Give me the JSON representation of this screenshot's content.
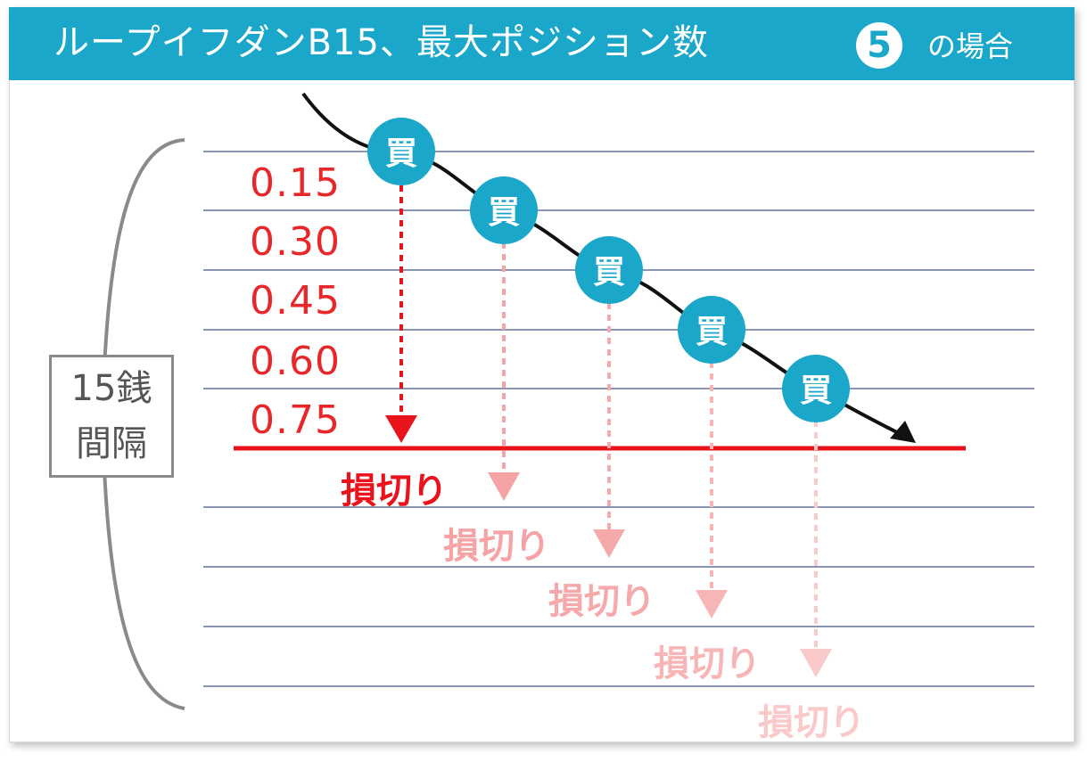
{
  "header": {
    "title": "ループイフダンB15、最大ポジション数",
    "badge": "5",
    "suffix": "の場合"
  },
  "range_label": {
    "line1": "15銭",
    "line2": "間隔"
  },
  "levels": [
    "0.15",
    "0.30",
    "0.45",
    "0.60",
    "0.75"
  ],
  "buy_label": "買",
  "stop_loss_label": "損切り",
  "colors": {
    "header": "#1aa7c9",
    "buy_marker": "#1aa7c9",
    "stop_line": "#e8131b",
    "level_text": "#e8272a",
    "grid": "#8a96b4",
    "stop_fades": [
      "#e8131b",
      "#f6a3a5",
      "#f6a9ab",
      "#f8b5b6",
      "#fac9ca"
    ]
  }
}
